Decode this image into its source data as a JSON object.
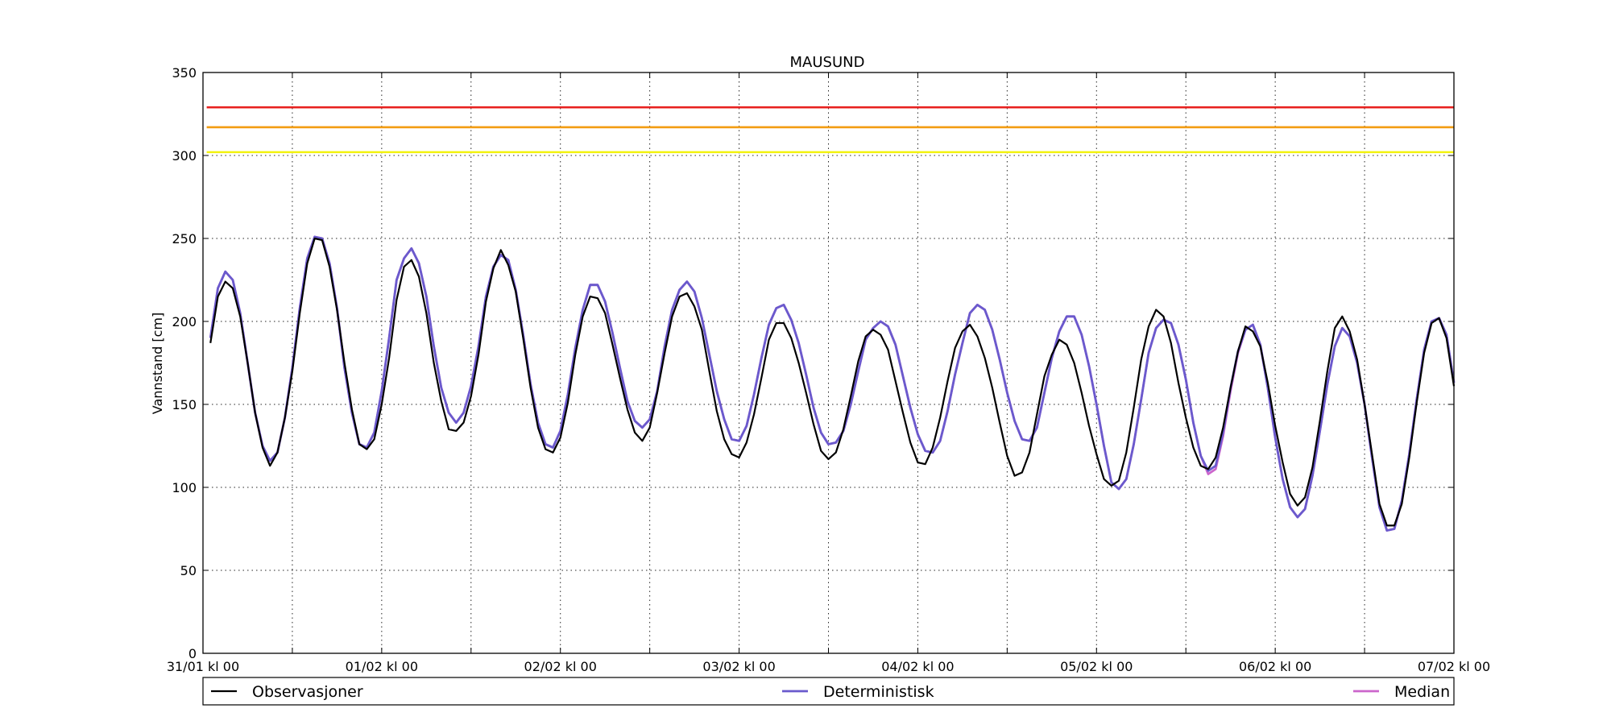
{
  "chart_data": {
    "type": "line",
    "title": "MAUSUND",
    "ylabel": "Vannstand [cm]",
    "xlabel": "",
    "x_unit": "hours from 31/01 kl 00",
    "xlim": [
      0,
      168
    ],
    "ylim": [
      0,
      350
    ],
    "grid": true,
    "x_tick_labels": [
      "31/01 kl 00",
      "01/02 kl 00",
      "02/02 kl 00",
      "03/02 kl 00",
      "04/02 kl 00",
      "05/02 kl 00",
      "06/02 kl 00",
      "07/02 kl 00"
    ],
    "x_tick_values": [
      0,
      24,
      48,
      72,
      96,
      120,
      144,
      168
    ],
    "x_minor_ticks": [
      12,
      36,
      60,
      84,
      108,
      132,
      156
    ],
    "y_ticks": [
      0,
      50,
      100,
      150,
      200,
      250,
      300,
      350
    ],
    "reference_lines": [
      {
        "y": 329,
        "color": "#e8201e"
      },
      {
        "y": 317,
        "color": "#f39c12"
      },
      {
        "y": 302,
        "color": "#f2f20f"
      }
    ],
    "x": [
      1,
      2,
      3,
      4,
      5,
      6,
      7,
      8,
      9,
      10,
      11,
      12,
      13,
      14,
      15,
      16,
      17,
      18,
      19,
      20,
      21,
      22,
      23,
      24,
      25,
      26,
      27,
      28,
      29,
      30,
      31,
      32,
      33,
      34,
      35,
      36,
      37,
      38,
      39,
      40,
      41,
      42,
      43,
      44,
      45,
      46,
      47,
      48,
      49,
      50,
      51,
      52,
      53,
      54,
      55,
      56,
      57,
      58,
      59,
      60,
      61,
      62,
      63,
      64,
      65,
      66,
      67,
      68,
      69,
      70,
      71,
      72,
      73,
      74,
      75,
      76,
      77,
      78,
      79,
      80,
      81,
      82,
      83,
      84,
      85,
      86,
      87,
      88,
      89,
      90,
      91,
      92,
      93,
      94,
      95,
      96,
      97,
      98,
      99,
      100,
      101,
      102,
      103,
      104,
      105,
      106,
      107,
      108,
      109,
      110,
      111,
      112,
      113,
      114,
      115,
      116,
      117,
      118,
      119,
      120,
      121,
      122,
      123,
      124,
      125,
      126,
      127,
      128,
      129,
      130,
      131,
      132,
      133,
      134,
      135,
      136,
      137,
      138,
      139,
      140,
      141,
      142,
      143,
      144,
      145,
      146,
      147,
      148,
      149,
      150,
      151,
      152,
      153,
      154,
      155,
      156,
      157,
      158,
      159,
      160,
      161,
      162,
      163,
      164,
      165,
      166,
      167,
      168
    ],
    "series": [
      {
        "name": "Observasjoner",
        "color": "#000000",
        "values": [
          187,
          215,
          224,
          220,
          203,
          175,
          145,
          124,
          113,
          121,
          142,
          170,
          205,
          235,
          250,
          249,
          233,
          207,
          175,
          147,
          126,
          123,
          129,
          150,
          178,
          213,
          233,
          237,
          227,
          205,
          175,
          152,
          135,
          134,
          139,
          155,
          180,
          212,
          232,
          243,
          234,
          218,
          190,
          160,
          136,
          123,
          121,
          130,
          151,
          180,
          203,
          215,
          214,
          205,
          186,
          166,
          147,
          133,
          128,
          136,
          157,
          181,
          203,
          215,
          217,
          209,
          195,
          170,
          146,
          129,
          120,
          118,
          127,
          144,
          166,
          189,
          199,
          199,
          190,
          175,
          157,
          138,
          122,
          117,
          121,
          135,
          155,
          176,
          191,
          195,
          192,
          183,
          164,
          145,
          127,
          115,
          114,
          124,
          142,
          164,
          184,
          194,
          198,
          191,
          178,
          160,
          139,
          119,
          107,
          109,
          121,
          144,
          167,
          180,
          189,
          186,
          175,
          157,
          137,
          120,
          105,
          101,
          104,
          121,
          148,
          177,
          197,
          207,
          203,
          187,
          163,
          142,
          124,
          113,
          111,
          118,
          136,
          160,
          182,
          197,
          194,
          185,
          163,
          137,
          115,
          96,
          89,
          94,
          112,
          140,
          170,
          196,
          203,
          194,
          177,
          150,
          120,
          90,
          77,
          77,
          90,
          118,
          151,
          181,
          199,
          202,
          190,
          161
        ]
      },
      {
        "name": "Deterministisk",
        "color": "#6a5acd",
        "values": [
          190,
          220,
          230,
          225,
          205,
          175,
          145,
          125,
          116,
          121,
          142,
          172,
          208,
          238,
          251,
          250,
          235,
          208,
          172,
          145,
          126,
          124,
          133,
          158,
          190,
          225,
          238,
          244,
          235,
          215,
          185,
          160,
          145,
          139,
          145,
          161,
          185,
          215,
          233,
          240,
          237,
          219,
          192,
          162,
          139,
          126,
          124,
          134,
          156,
          184,
          207,
          222,
          222,
          212,
          193,
          172,
          152,
          140,
          136,
          141,
          158,
          185,
          207,
          219,
          224,
          218,
          202,
          180,
          158,
          141,
          129,
          128,
          137,
          156,
          178,
          198,
          208,
          210,
          201,
          187,
          168,
          148,
          133,
          126,
          127,
          134,
          150,
          170,
          189,
          196,
          200,
          197,
          186,
          167,
          148,
          132,
          122,
          121,
          128,
          146,
          168,
          187,
          205,
          210,
          207,
          195,
          177,
          157,
          140,
          129,
          128,
          136,
          157,
          178,
          194,
          203,
          203,
          192,
          173,
          150,
          125,
          103,
          99,
          105,
          126,
          153,
          181,
          196,
          201,
          199,
          186,
          165,
          139,
          119,
          110,
          113,
          133,
          160,
          182,
          195,
          198,
          186,
          160,
          130,
          105,
          88,
          82,
          87,
          107,
          134,
          162,
          185,
          196,
          191,
          175,
          150,
          118,
          88,
          74,
          75,
          92,
          120,
          153,
          183,
          200,
          202,
          192,
          163
        ]
      },
      {
        "name": "Median",
        "color": "#cc66cc",
        "values": [
          190,
          220,
          230,
          225,
          205,
          175,
          145,
          125,
          116,
          121,
          142,
          172,
          208,
          238,
          251,
          250,
          235,
          208,
          172,
          145,
          126,
          124,
          133,
          158,
          190,
          225,
          238,
          244,
          235,
          215,
          185,
          160,
          145,
          139,
          145,
          161,
          185,
          215,
          233,
          240,
          237,
          219,
          192,
          162,
          139,
          126,
          124,
          134,
          156,
          184,
          207,
          222,
          222,
          212,
          193,
          172,
          152,
          140,
          136,
          141,
          158,
          185,
          207,
          219,
          224,
          218,
          202,
          180,
          158,
          141,
          129,
          128,
          137,
          156,
          178,
          198,
          208,
          210,
          201,
          187,
          168,
          148,
          133,
          126,
          127,
          134,
          150,
          170,
          189,
          196,
          200,
          197,
          186,
          167,
          148,
          132,
          122,
          121,
          128,
          146,
          168,
          187,
          205,
          210,
          207,
          195,
          177,
          157,
          140,
          129,
          128,
          136,
          157,
          178,
          194,
          203,
          203,
          192,
          173,
          150,
          125,
          103,
          99,
          105,
          126,
          153,
          181,
          196,
          201,
          199,
          186,
          165,
          139,
          119,
          108,
          111,
          131,
          158,
          181,
          195,
          198,
          186,
          160,
          130,
          105,
          88,
          82,
          87,
          107,
          134,
          162,
          185,
          196,
          191,
          175,
          150,
          118,
          88,
          74,
          75,
          92,
          120,
          153,
          183,
          200,
          202,
          192,
          163
        ]
      }
    ],
    "legend": {
      "placement": "bottom",
      "entries": [
        "Observasjoner",
        "Deterministisk",
        "Median"
      ]
    }
  }
}
